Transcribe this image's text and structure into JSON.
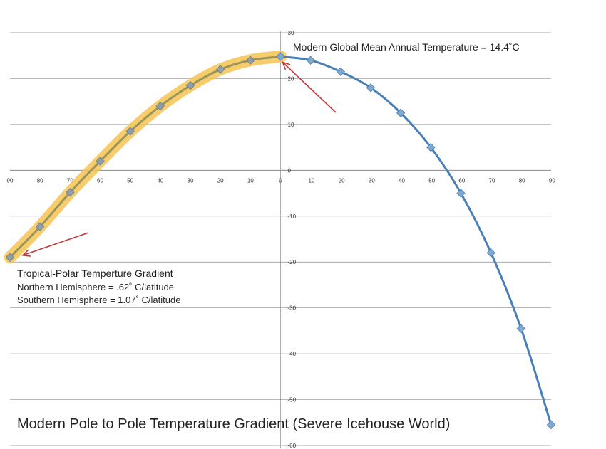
{
  "chart_data": {
    "type": "line",
    "title": "Modern Pole to Pole Temperature Gradient  (Severe Icehouse World)",
    "xlabel": "",
    "ylabel": "",
    "x_ticks": [
      90,
      80,
      70,
      60,
      50,
      40,
      30,
      20,
      10,
      0,
      -10,
      -20,
      -30,
      -40,
      -50,
      -60,
      -70,
      -80,
      -90
    ],
    "y_ticks": [
      30,
      20,
      10,
      0,
      -10,
      -20,
      -30,
      -40,
      -50,
      -60
    ],
    "xlim": [
      90,
      -90
    ],
    "ylim": [
      -60,
      30
    ],
    "grid": "horizontal",
    "series": [
      {
        "color": "#4a7fb5",
        "highlight": "#f5c352",
        "x": [
          90,
          80,
          70,
          60,
          50,
          40,
          30,
          20,
          10,
          0
        ],
        "y": [
          -19,
          -12.3,
          -4.8,
          2,
          8.5,
          14,
          18.5,
          22,
          24,
          24.8
        ]
      },
      {
        "color": "#4a7fb5",
        "x": [
          0,
          -10,
          -20,
          -30,
          -40,
          -50,
          -60,
          -70,
          -80,
          -90
        ],
        "y": [
          24.8,
          24,
          21.5,
          18,
          12.5,
          5,
          -5,
          -18,
          -34.5,
          -55.5
        ]
      }
    ],
    "annotations": {
      "global_mean": "Modern Global Mean Annual Temperature = 14.4˚C",
      "gradient_title": "Tropical-Polar Temperture Gradient",
      "northern": "Northern Hemisphere = .62˚ C/latitude",
      "southern": "Southern Hemisphere = 1.07˚ C/latitude"
    },
    "arrow_color": "#c0393b"
  }
}
